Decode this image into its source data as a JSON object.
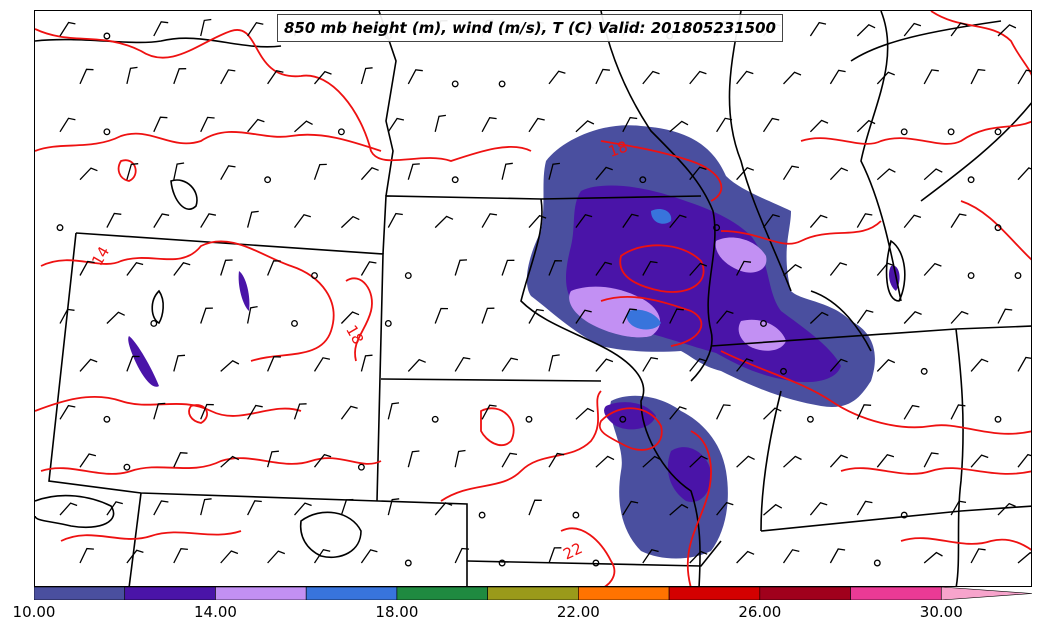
{
  "title": "850 mb height (m), wind (m/s), T (C) Valid: 201805231500",
  "temperature_contours": {
    "color": "#ee1111",
    "labels": [
      "14",
      "18",
      "18",
      "22"
    ]
  },
  "colorbar": {
    "min": 10,
    "max": 32,
    "bins": [
      {
        "from": 10,
        "to": 12,
        "color": "#4a4f9f"
      },
      {
        "from": 12,
        "to": 14,
        "color": "#4a14a8"
      },
      {
        "from": 14,
        "to": 16,
        "color": "#c290f3"
      },
      {
        "from": 16,
        "to": 18,
        "color": "#3874dc"
      },
      {
        "from": 18,
        "to": 20,
        "color": "#1f8a40"
      },
      {
        "from": 20,
        "to": 22,
        "color": "#9a9a1a"
      },
      {
        "from": 22,
        "to": 24,
        "color": "#ff7300"
      },
      {
        "from": 24,
        "to": 26,
        "color": "#d40000"
      },
      {
        "from": 26,
        "to": 28,
        "color": "#a0001c"
      },
      {
        "from": 28,
        "to": 30,
        "color": "#ea3a95"
      },
      {
        "from": 30,
        "to": 32,
        "color": "#f7a4cc",
        "extend": true
      }
    ],
    "ticks": [
      "10.00",
      "14.00",
      "18.00",
      "22.00",
      "26.00",
      "30.00"
    ]
  }
}
